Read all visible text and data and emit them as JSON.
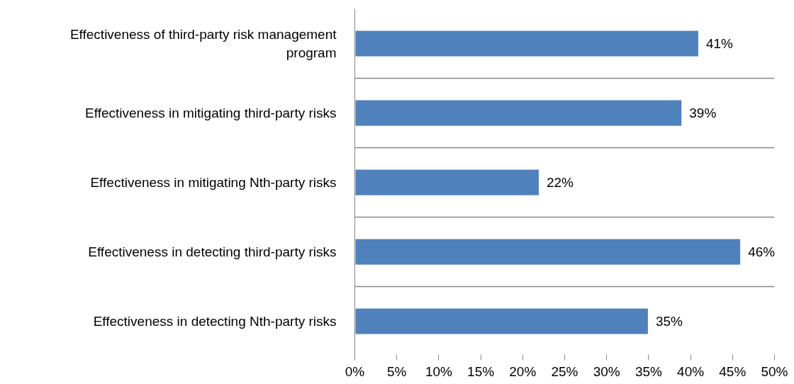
{
  "chart_data": {
    "type": "bar",
    "orientation": "horizontal",
    "categories": [
      "Effectiveness of third-party risk management program",
      "Effectiveness in mitigating third-party risks",
      "Effectiveness in mitigating Nth-party risks",
      "Effectiveness in detecting third-party risks",
      "Effectiveness in detecting Nth-party risks"
    ],
    "values": [
      41,
      39,
      22,
      46,
      35
    ],
    "value_labels": [
      "41%",
      "39%",
      "22%",
      "46%",
      "35%"
    ],
    "color": "#4f81bd",
    "xlim": [
      0,
      50
    ],
    "xticks": [
      {
        "value": 0,
        "label": "0%"
      },
      {
        "value": 5,
        "label": "5%"
      },
      {
        "value": 10,
        "label": "10%"
      },
      {
        "value": 15,
        "label": "15%"
      },
      {
        "value": 20,
        "label": "20%"
      },
      {
        "value": 25,
        "label": "25%"
      },
      {
        "value": 30,
        "label": "30%"
      },
      {
        "value": 35,
        "label": "35%"
      },
      {
        "value": 40,
        "label": "40%"
      },
      {
        "value": 45,
        "label": "45%"
      },
      {
        "value": 50,
        "label": "50%"
      }
    ],
    "grid": "y"
  }
}
